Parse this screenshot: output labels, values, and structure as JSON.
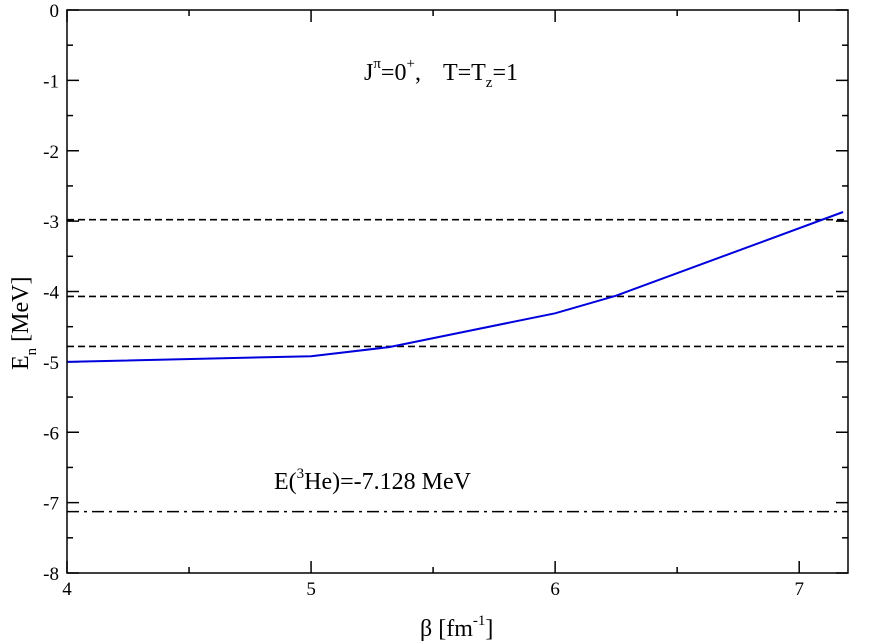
{
  "chart_data": {
    "type": "line",
    "xlabel": {
      "main": "β [fm",
      "sup": "-1",
      "tail": "]"
    },
    "ylabel": {
      "main": "E",
      "sub": "n",
      "tail": " [MeV]"
    },
    "xlim": [
      4,
      7.2
    ],
    "ylim": [
      -8,
      0
    ],
    "xticks": [
      4,
      5,
      6,
      7
    ],
    "yticks": [
      0,
      -1,
      -2,
      -3,
      -4,
      -5,
      -6,
      -7,
      -8
    ],
    "xtick_labels": [
      "4",
      "5",
      "6",
      "7"
    ],
    "ytick_labels": [
      "0",
      "-1",
      "-2",
      "-3",
      "-4",
      "-5",
      "-6",
      "-7",
      "-8"
    ],
    "grid": false,
    "series": [
      {
        "color": "#0000dd",
        "style": "solid",
        "x": [
          4.0,
          5.0,
          5.32,
          6.0,
          6.25,
          7.18
        ],
        "y": [
          -5.0,
          -4.92,
          -4.79,
          -4.31,
          -4.06,
          -2.87
        ]
      }
    ],
    "hlines": [
      {
        "y": -2.98,
        "style": "dashed",
        "color": "#000000"
      },
      {
        "y": -4.07,
        "style": "dashed",
        "color": "#000000"
      },
      {
        "y": -4.78,
        "style": "dashed",
        "color": "#000000"
      },
      {
        "y": -7.128,
        "style": "dashdot",
        "color": "#000000"
      }
    ],
    "annotations": {
      "quantum": {
        "j": "J",
        "jsup": "π",
        "eq": "=0",
        "plus": "+",
        "sep": ",",
        "t": "T=T",
        "tsub": "z",
        "tend": "=1"
      },
      "he3": {
        "pre": "E(",
        "sup": "3",
        "post": "He)=-7.128 MeV"
      }
    }
  }
}
